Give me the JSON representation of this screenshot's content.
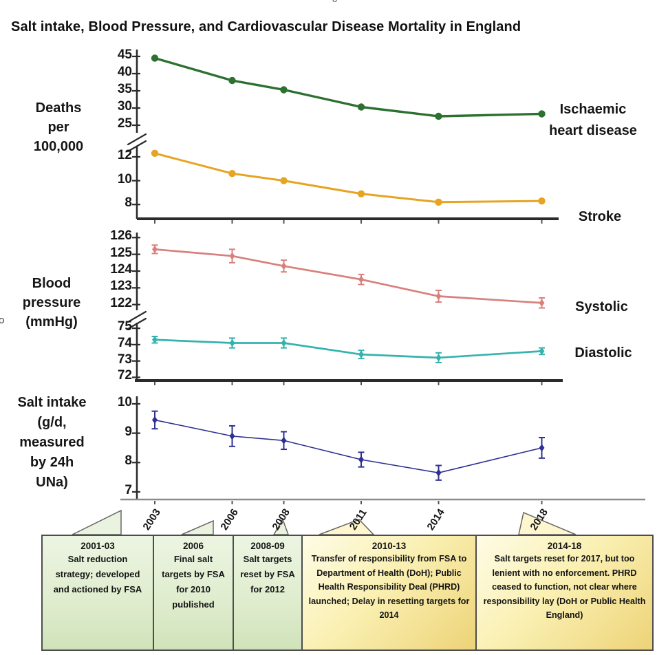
{
  "title": "Salt intake, Blood Pressure, and Cardiovascular Disease Mortality in England",
  "artifacts": {
    "left_edge_text": "o",
    "top_edge_text": "o"
  },
  "colors": {
    "ihd_green": "#2d7030",
    "stroke_orange": "#e7a322",
    "systolic_red": "#d8807d",
    "diastolic_teal": "#35b2ad",
    "salt_navy": "#2e3192",
    "axis_dark": "#2b2b2b",
    "axis_light": "#8a8a8a",
    "pointer_green": "#e9f3df",
    "pointer_yellow": "#fdf6cf",
    "box_border": "#4d4d4d"
  },
  "chart_data": [
    {
      "type": "line",
      "panel": "mortality",
      "ylabel": "Deaths\nper\n100,000",
      "x_years": [
        2003,
        2006,
        2008,
        2011,
        2014,
        2018
      ],
      "y_axis": {
        "broken_axis": true,
        "upper_ticks": [
          45,
          40,
          35,
          30,
          25
        ],
        "lower_ticks": [
          12,
          10,
          8
        ],
        "upper_ylim": [
          22.4,
          47.4
        ],
        "lower_ylim": [
          6.8,
          12.75
        ]
      },
      "series": [
        {
          "name": "Ischaemic heart disease",
          "segment": "upper",
          "color": "#2d7030",
          "marker": "circle",
          "values": [
            44.5,
            38.0,
            35.3,
            30.3,
            27.6,
            28.3
          ]
        },
        {
          "name": "Stroke",
          "segment": "lower",
          "color": "#e7a322",
          "marker": "circle",
          "values": [
            12.3,
            10.6,
            10.0,
            8.9,
            8.2,
            8.3
          ]
        }
      ]
    },
    {
      "type": "line",
      "panel": "blood-pressure",
      "ylabel": "Blood\npressure\n(mmHg)",
      "x_years": [
        2003,
        2006,
        2008,
        2011,
        2014,
        2018
      ],
      "y_axis": {
        "broken_axis": true,
        "upper_ticks": [
          126,
          125,
          124,
          123,
          122
        ],
        "lower_ticks": [
          75,
          74,
          73,
          72
        ],
        "upper_ylim": [
          121.7,
          126.3
        ],
        "lower_ylim": [
          71.85,
          75.3
        ]
      },
      "series": [
        {
          "name": "Systolic",
          "segment": "upper",
          "color": "#d8807d",
          "marker": "diamond",
          "values": [
            125.3,
            124.9,
            124.3,
            123.5,
            122.5,
            122.1
          ],
          "errors": [
            0.25,
            0.4,
            0.35,
            0.3,
            0.35,
            0.3
          ]
        },
        {
          "name": "Diastolic",
          "segment": "lower",
          "color": "#35b2ad",
          "marker": "diamond",
          "values": [
            74.3,
            74.1,
            74.1,
            73.4,
            73.2,
            73.6
          ],
          "errors": [
            0.2,
            0.3,
            0.3,
            0.25,
            0.3,
            0.2
          ]
        }
      ]
    },
    {
      "type": "line",
      "panel": "salt-intake",
      "ylabel": "Salt intake\n(g/d,\nmeasured\nby 24h\nUNa)",
      "x_years": [
        2003,
        2006,
        2008,
        2011,
        2014,
        2018
      ],
      "y_axis": {
        "broken_axis": false,
        "ticks": [
          10,
          9,
          8,
          7
        ],
        "ylim": [
          6.74,
          10.21
        ]
      },
      "series": [
        {
          "name": "Salt intake",
          "segment": "single",
          "color": "#2e3192",
          "marker": "diamond",
          "values": [
            9.45,
            8.9,
            8.75,
            8.1,
            7.65,
            8.5
          ],
          "errors": [
            0.3,
            0.35,
            0.3,
            0.25,
            0.25,
            0.35
          ]
        }
      ]
    }
  ],
  "timeline": {
    "boxes": [
      {
        "period": "2001-03",
        "theme": "green",
        "text": "Salt reduction strategy; developed and actioned by FSA"
      },
      {
        "period": "2006",
        "theme": "green",
        "text": "Final salt targets by FSA for 2010 published"
      },
      {
        "period": "2008-09",
        "theme": "green",
        "text": "Salt targets reset by FSA for 2012"
      },
      {
        "period": "2010-13",
        "theme": "yellow",
        "text": "Transfer of responsibility from FSA to Department of Health (DoH); Public Health Responsibility Deal (PHRD) launched; Delay in resetting targets for 2014"
      },
      {
        "period": "2014-18",
        "theme": "yellow",
        "text": "Salt targets reset for 2017, but too lenient with no enforcement. PHRD ceased to function, not clear where responsibility lay (DoH or Public Health England)"
      }
    ]
  }
}
